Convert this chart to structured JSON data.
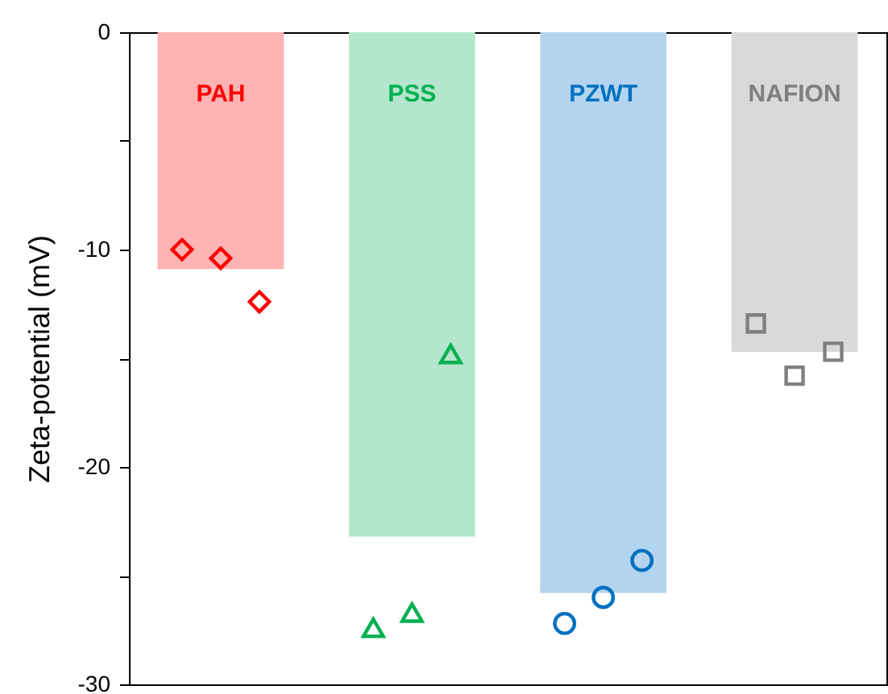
{
  "chart_data": {
    "type": "bar",
    "ylabel": "Zeta-potential (mV)",
    "categories": [
      "PAH",
      "PSS",
      "PZWT",
      "NAFION"
    ],
    "ylim": [
      -30,
      0
    ],
    "yticks": [
      0,
      {
        "value": -5,
        "label": null
      },
      -10,
      {
        "value": -15,
        "label": null
      },
      -20,
      {
        "value": -25,
        "label": null
      },
      -30
    ],
    "grid": false,
    "tick_labels": "y",
    "series": [
      {
        "values": [
          -10.9,
          -23.2,
          -25.8,
          -14.7
        ],
        "colors": [
          "#ffb3b3",
          "#b3e6cc",
          "#b3d4ee",
          "#d9d9d9"
        ]
      },
      {
        "type": "scatter",
        "marker": "diamond",
        "color": "#ff0000",
        "x": [
          "PAH",
          "PAH",
          "PAH"
        ],
        "values": [
          -10.0,
          -10.4,
          -12.4
        ]
      },
      {
        "type": "scatter",
        "marker": "triangle",
        "color": "#00b050",
        "x": [
          "PSS",
          "PSS",
          "PSS"
        ],
        "values": [
          -27.4,
          -26.7,
          -14.8
        ]
      },
      {
        "type": "scatter",
        "marker": "circle",
        "color": "#0070c0",
        "x": [
          "PZWT",
          "PZWT",
          "PZWT"
        ],
        "values": [
          -27.2,
          -26.0,
          -24.3
        ]
      },
      {
        "type": "scatter",
        "marker": "square",
        "color": "#7f7f7f",
        "x": [
          "NAFION",
          "NAFION",
          "NAFION"
        ],
        "values": [
          -13.4,
          -15.8,
          -14.7
        ]
      }
    ]
  }
}
